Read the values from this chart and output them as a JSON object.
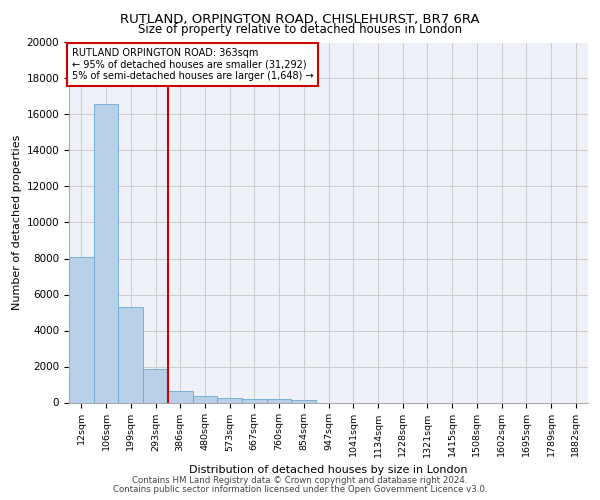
{
  "title1": "RUTLAND, ORPINGTON ROAD, CHISLEHURST, BR7 6RA",
  "title2": "Size of property relative to detached houses in London",
  "xlabel": "Distribution of detached houses by size in London",
  "ylabel": "Number of detached properties",
  "categories": [
    "12sqm",
    "106sqm",
    "199sqm",
    "293sqm",
    "386sqm",
    "480sqm",
    "573sqm",
    "667sqm",
    "760sqm",
    "854sqm",
    "947sqm",
    "1041sqm",
    "1134sqm",
    "1228sqm",
    "1321sqm",
    "1415sqm",
    "1508sqm",
    "1602sqm",
    "1695sqm",
    "1789sqm",
    "1882sqm"
  ],
  "values": [
    8100,
    16600,
    5300,
    1850,
    650,
    350,
    270,
    210,
    170,
    130,
    0,
    0,
    0,
    0,
    0,
    0,
    0,
    0,
    0,
    0,
    0
  ],
  "bar_color": "#b8d0e8",
  "bar_edge_color": "#6aaad4",
  "grid_color": "#cccccc",
  "vline_x": 3.5,
  "vline_color": "#cc0000",
  "annotation_box_color": "#cc0000",
  "annotation_lines": [
    "RUTLAND ORPINGTON ROAD: 363sqm",
    "← 95% of detached houses are smaller (31,292)",
    "5% of semi-detached houses are larger (1,648) →"
  ],
  "ylim": [
    0,
    20000
  ],
  "yticks": [
    0,
    2000,
    4000,
    6000,
    8000,
    10000,
    12000,
    14000,
    16000,
    18000,
    20000
  ],
  "footer1": "Contains HM Land Registry data © Crown copyright and database right 2024.",
  "footer2": "Contains public sector information licensed under the Open Government Licence v3.0.",
  "bg_color": "#eef2f8"
}
